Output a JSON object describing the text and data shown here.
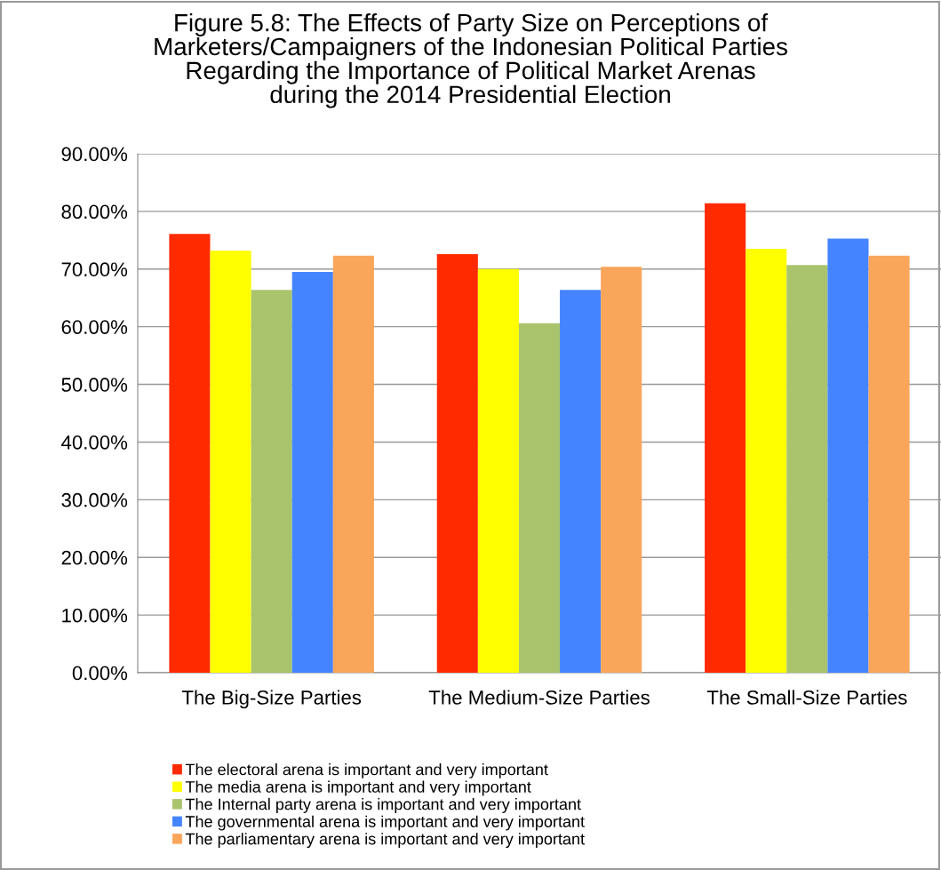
{
  "chart_data": {
    "type": "bar",
    "title": "Figure 5.8: The Effects of Party Size on Perceptions of\nMarketers/Campaigners of the Indonesian Political Parties\nRegarding the Importance of Political Market Arenas\nduring the 2014 Presidential Election",
    "categories": [
      "The Big-Size Parties",
      "The Medium-Size Parties",
      "The Small-Size Parties"
    ],
    "series": [
      {
        "name": "The electoral arena is important and very important",
        "color": "#ff2a00",
        "values": [
          76.1,
          72.6,
          81.4
        ]
      },
      {
        "name": "The media arena is important and very important",
        "color": "#ffff00",
        "values": [
          73.2,
          70.0,
          73.5
        ]
      },
      {
        "name": "The Internal party arena is important and very important",
        "color": "#a9c46c",
        "values": [
          66.4,
          60.6,
          70.7
        ]
      },
      {
        "name": "The governmental arena is important and very important",
        "color": "#4584ff",
        "values": [
          69.5,
          66.4,
          75.3
        ]
      },
      {
        "name": "The parliamentary arena is important and very important",
        "color": "#f9a55a",
        "values": [
          72.3,
          70.4,
          72.3
        ]
      }
    ],
    "ylim": [
      0,
      90
    ],
    "yticks": [
      {
        "value": 0,
        "label": "0.00%"
      },
      {
        "value": 10,
        "label": "10.00%"
      },
      {
        "value": 20,
        "label": "20.00%"
      },
      {
        "value": 30,
        "label": "30.00%"
      },
      {
        "value": 40,
        "label": "40.00%"
      },
      {
        "value": 50,
        "label": "50.00%"
      },
      {
        "value": 60,
        "label": "60.00%"
      },
      {
        "value": 70,
        "label": "70.00%"
      },
      {
        "value": 80,
        "label": "80.00%"
      },
      {
        "value": 90,
        "label": "90.00%"
      }
    ],
    "grid": "y",
    "legend": "bottom"
  }
}
